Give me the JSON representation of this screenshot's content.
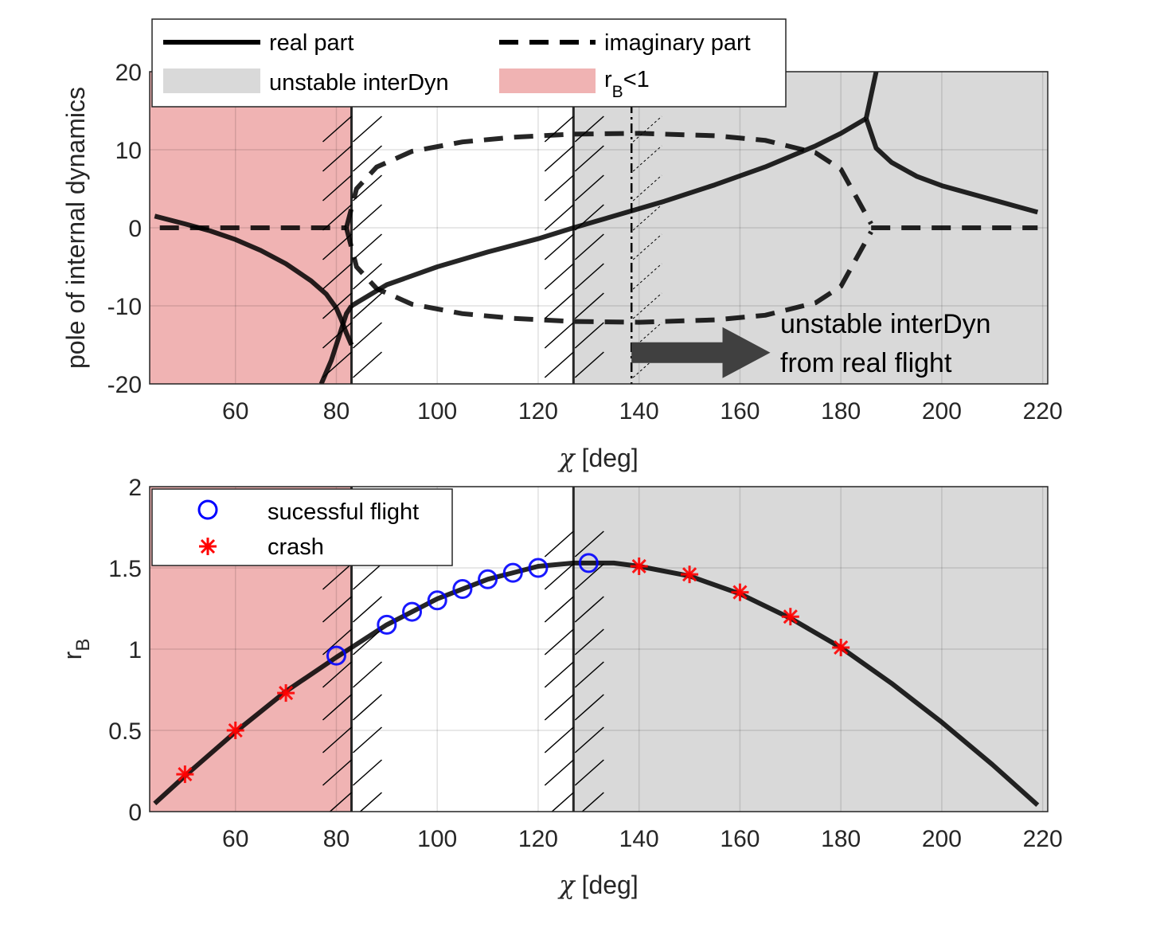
{
  "chart_data": [
    {
      "type": "line",
      "xlabel_symbol": "χ",
      "xlabel_unit": " [deg]",
      "ylabel": "pole of internal dynamics",
      "xlim": [
        43,
        221
      ],
      "ylim": [
        -20,
        20
      ],
      "xticks": [
        60,
        80,
        100,
        120,
        140,
        160,
        180,
        200,
        220
      ],
      "yticks": [
        20,
        10,
        0,
        -10,
        -20
      ],
      "grid": true,
      "legend": {
        "placement": "top-left",
        "entries": [
          {
            "label": "real part",
            "style": "solid"
          },
          {
            "label": "imaginary part",
            "style": "dashed"
          },
          {
            "label": "unstable interDyn",
            "style": "patch",
            "color": "#d9d9d9"
          },
          {
            "label_main": "r",
            "label_sub": "B",
            "label_tail": "<1",
            "style": "patch",
            "color": "#f0b3b3"
          }
        ]
      },
      "regions": [
        {
          "name": "r_B<1",
          "from": 43,
          "to": 83,
          "color": "#f0b3b3"
        },
        {
          "name": "unstable interDyn",
          "from": 127,
          "to": 221,
          "color": "#d9d9d9"
        }
      ],
      "boundaries": [
        83,
        127
      ],
      "dashdot_line": 138.5,
      "series": [
        {
          "name": "real part (branch 1)",
          "style": "solid",
          "x": [
            44,
            50,
            55,
            60,
            65,
            70,
            75,
            78,
            80,
            81,
            82,
            83
          ],
          "y": [
            1.5,
            0.5,
            -0.4,
            -1.5,
            -2.9,
            -4.6,
            -6.8,
            -8.5,
            -10.3,
            -11.8,
            -13.5,
            -15
          ]
        },
        {
          "name": "real part (branch 2)",
          "style": "solid",
          "x": [
            77,
            79,
            80.5,
            82,
            83
          ],
          "y": [
            -20,
            -17,
            -14,
            -11,
            -10
          ]
        },
        {
          "name": "real part (main)",
          "style": "solid",
          "x": [
            83,
            90,
            100,
            110,
            120,
            127,
            135,
            145,
            155,
            165,
            175,
            180,
            185
          ],
          "y": [
            -10,
            -7.3,
            -5,
            -3.1,
            -1.4,
            0,
            1.5,
            3.4,
            5.5,
            7.8,
            10.5,
            12.1,
            14
          ]
        },
        {
          "name": "real part (upper fork)",
          "style": "solid",
          "x": [
            185,
            186,
            187
          ],
          "y": [
            14,
            17,
            20
          ]
        },
        {
          "name": "real part (lower fork)",
          "style": "solid",
          "x": [
            185,
            187,
            190,
            195,
            200,
            210,
            219
          ],
          "y": [
            14,
            10.2,
            8.4,
            6.6,
            5.4,
            3.6,
            2
          ]
        },
        {
          "name": "imaginary part (zero, left)",
          "style": "dashed",
          "x": [
            45,
            82
          ],
          "y": [
            0,
            0
          ]
        },
        {
          "name": "imaginary part (upper)",
          "style": "dashed",
          "x": [
            82,
            84,
            88,
            95,
            105,
            115,
            127,
            140,
            155,
            165,
            175,
            180,
            183,
            186
          ],
          "y": [
            0,
            5,
            7.8,
            9.8,
            11,
            11.6,
            12,
            12.1,
            11.8,
            11.2,
            9.6,
            7.5,
            4,
            0.5
          ]
        },
        {
          "name": "imaginary part (lower)",
          "style": "dashed",
          "x": [
            82,
            84,
            88,
            95,
            105,
            115,
            127,
            140,
            155,
            165,
            175,
            180,
            183,
            186
          ],
          "y": [
            0,
            -5,
            -7.8,
            -9.8,
            -11,
            -11.6,
            -12,
            -12.1,
            -11.8,
            -11.2,
            -9.6,
            -7.5,
            -4,
            -0.5
          ]
        },
        {
          "name": "imaginary part (zero, right)",
          "style": "dashed",
          "x": [
            186,
            219
          ],
          "y": [
            0,
            0
          ]
        }
      ],
      "annotation": {
        "line1": "unstable interDyn",
        "line2": "from real flight",
        "arrow_from_x": 138.5,
        "arrow_to_x": 166,
        "arrow_y": -16
      }
    },
    {
      "type": "line",
      "xlabel_symbol": "χ",
      "xlabel_unit": " [deg]",
      "ylabel_main": "r",
      "ylabel_sub": "B",
      "xlim": [
        43,
        221
      ],
      "ylim": [
        0,
        2
      ],
      "xticks": [
        60,
        80,
        100,
        120,
        140,
        160,
        180,
        200,
        220
      ],
      "yticks": [
        "2",
        "1.5",
        "1",
        "0.5",
        "0"
      ],
      "ytick_values": [
        2,
        1.5,
        1,
        0.5,
        0
      ],
      "grid": true,
      "legend": {
        "placement": "top-left",
        "entries": [
          {
            "label": "sucessful flight",
            "marker": "circle",
            "color": "#0000ff"
          },
          {
            "label": "crash",
            "marker": "asterisk",
            "color": "#ff0000"
          }
        ]
      },
      "regions": [
        {
          "name": "r_B<1",
          "from": 43,
          "to": 83,
          "color": "#f0b3b3"
        },
        {
          "name": "unstable interDyn",
          "from": 127,
          "to": 221,
          "color": "#d9d9d9"
        }
      ],
      "boundaries": [
        83,
        127
      ],
      "curve": {
        "x": [
          44,
          50,
          60,
          70,
          80,
          83,
          90,
          100,
          110,
          120,
          127,
          135,
          140,
          150,
          160,
          170,
          180,
          190,
          200,
          210,
          219
        ],
        "y": [
          0.05,
          0.22,
          0.49,
          0.74,
          0.95,
          1.01,
          1.15,
          1.31,
          1.43,
          1.51,
          1.53,
          1.53,
          1.51,
          1.45,
          1.34,
          1.19,
          1.01,
          0.79,
          0.55,
          0.29,
          0.04
        ]
      },
      "successful_flight": {
        "x": [
          80,
          90,
          95,
          100,
          105,
          110,
          115,
          120,
          130
        ],
        "y": [
          0.96,
          1.15,
          1.23,
          1.3,
          1.37,
          1.43,
          1.47,
          1.5,
          1.53
        ]
      },
      "crash": {
        "x": [
          50,
          60,
          70,
          140,
          150,
          160,
          170,
          180
        ],
        "y": [
          0.23,
          0.5,
          0.73,
          1.51,
          1.46,
          1.35,
          1.2,
          1.01
        ]
      }
    }
  ]
}
